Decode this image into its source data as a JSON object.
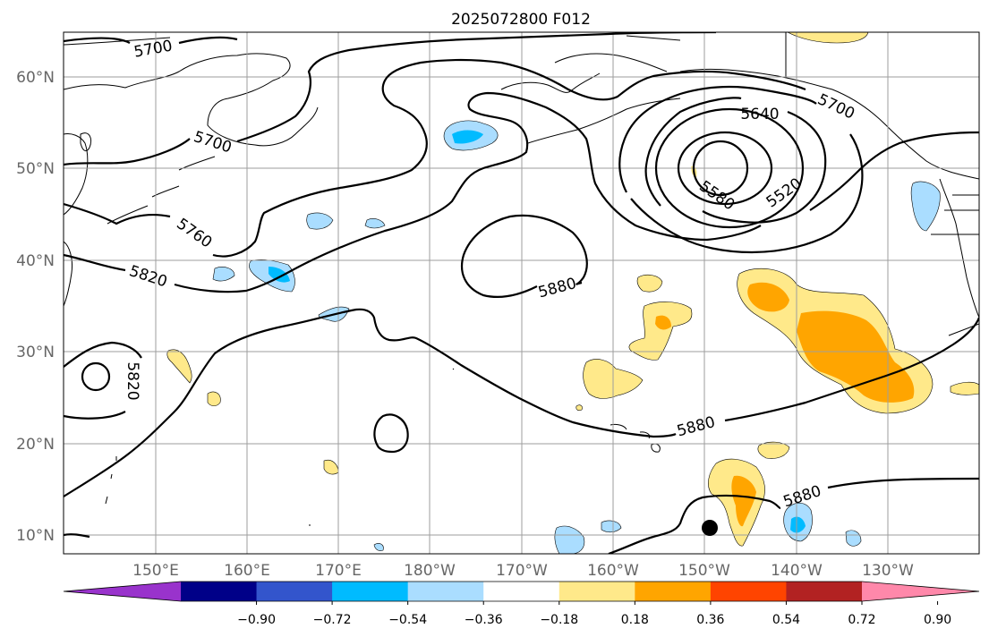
{
  "title": "2025072800 F012",
  "lat_labels": [
    "60°N",
    "50°N",
    "40°N",
    "30°N",
    "20°N",
    "10°N"
  ],
  "lon_labels": [
    "150°E",
    "160°E",
    "170°E",
    "180°W",
    "170°W",
    "160°W",
    "150°W",
    "140°W",
    "130°W"
  ],
  "contour_labels": [
    "5700",
    "5700",
    "5760",
    "5820",
    "5820",
    "5640",
    "5700",
    "5580",
    "5520",
    "5880",
    "5880",
    "5880"
  ],
  "colorbar": {
    "ticks": [
      "−0.90",
      "−0.72",
      "−0.54",
      "−0.36",
      "−0.18",
      "0.18",
      "0.36",
      "0.54",
      "0.72",
      "0.90"
    ],
    "colors": [
      "#9933cc",
      "#000088",
      "#3355cc",
      "#00bbff",
      "#aaddff",
      "#ffffff",
      "#ffe98a",
      "#ffa500",
      "#ff4400",
      "#b22222",
      "#ff88aa"
    ]
  },
  "colors": {
    "land_line": "#000000",
    "grid": "#9e9e9e",
    "light_yellow": "#ffe98a",
    "orange": "#ffa500",
    "light_blue": "#aaddff",
    "cyan": "#00bbff"
  }
}
